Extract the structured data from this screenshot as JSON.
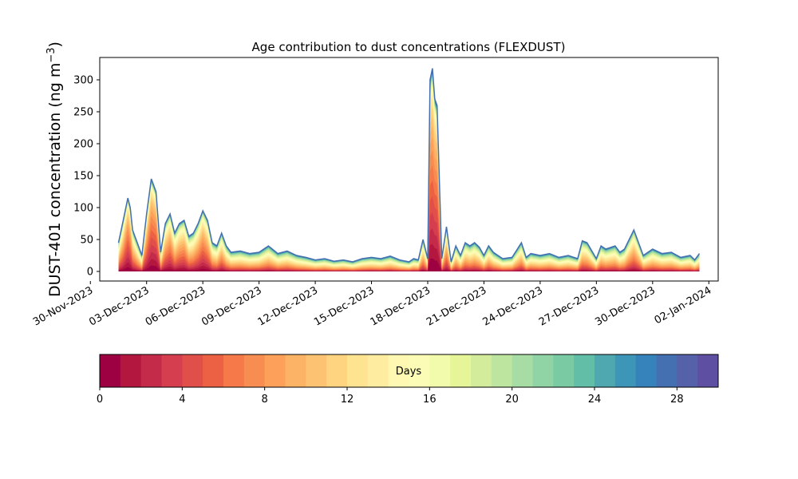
{
  "chart_data": {
    "type": "area",
    "title": "Age contribution to dust concentrations (FLEXDUST)",
    "ylabel_main": "DUST-401 concentration (ng m",
    "ylabel_sup": "−3",
    "ylabel_close": ")",
    "xlabel": "",
    "ylim": [
      -15,
      335
    ],
    "xlim": [
      "2023-11-30T12:00",
      "2024-01-02T12:00"
    ],
    "y_ticks": [
      0,
      50,
      100,
      150,
      200,
      250,
      300
    ],
    "x_ticks": [
      "30-Nov-2023",
      "03-Dec-2023",
      "06-Dec-2023",
      "09-Dec-2023",
      "12-Dec-2023",
      "15-Dec-2023",
      "18-Dec-2023",
      "21-Dec-2023",
      "24-Dec-2023",
      "27-Dec-2023",
      "30-Dec-2023",
      "02-Jan-2024"
    ],
    "x_tick_dates": [
      "2023-11-30",
      "2023-12-03",
      "2023-12-06",
      "2023-12-09",
      "2023-12-12",
      "2023-12-15",
      "2023-12-18",
      "2023-12-21",
      "2023-12-24",
      "2023-12-27",
      "2023-12-30",
      "2024-01-02"
    ],
    "total_series": {
      "x": [
        "2023-12-01T12:00",
        "2023-12-01T18:00",
        "2023-12-02T00:00",
        "2023-12-02T03:00",
        "2023-12-02T06:00",
        "2023-12-02T12:00",
        "2023-12-02T18:00",
        "2023-12-03T00:00",
        "2023-12-03T06:00",
        "2023-12-03T12:00",
        "2023-12-03T18:00",
        "2023-12-04T00:00",
        "2023-12-04T06:00",
        "2023-12-04T12:00",
        "2023-12-04T18:00",
        "2023-12-05T00:00",
        "2023-12-05T06:00",
        "2023-12-05T12:00",
        "2023-12-05T18:00",
        "2023-12-06T00:00",
        "2023-12-06T06:00",
        "2023-12-06T12:00",
        "2023-12-06T18:00",
        "2023-12-07T00:00",
        "2023-12-07T06:00",
        "2023-12-07T12:00",
        "2023-12-08T00:00",
        "2023-12-08T12:00",
        "2023-12-09T00:00",
        "2023-12-09T12:00",
        "2023-12-10T00:00",
        "2023-12-10T12:00",
        "2023-12-11T00:00",
        "2023-12-11T12:00",
        "2023-12-12T00:00",
        "2023-12-12T12:00",
        "2023-12-13T00:00",
        "2023-12-13T12:00",
        "2023-12-14T00:00",
        "2023-12-14T12:00",
        "2023-12-15T00:00",
        "2023-12-15T12:00",
        "2023-12-16T00:00",
        "2023-12-16T12:00",
        "2023-12-17T00:00",
        "2023-12-17T06:00",
        "2023-12-17T12:00",
        "2023-12-17T18:00",
        "2023-12-18T00:00",
        "2023-12-18T03:00",
        "2023-12-18T06:00",
        "2023-12-18T09:00",
        "2023-12-18T12:00",
        "2023-12-18T18:00",
        "2023-12-19T00:00",
        "2023-12-19T06:00",
        "2023-12-19T12:00",
        "2023-12-19T18:00",
        "2023-12-20T00:00",
        "2023-12-20T06:00",
        "2023-12-20T12:00",
        "2023-12-20T18:00",
        "2023-12-21T00:00",
        "2023-12-21T06:00",
        "2023-12-21T12:00",
        "2023-12-22T00:00",
        "2023-12-22T12:00",
        "2023-12-23T00:00",
        "2023-12-23T06:00",
        "2023-12-23T12:00",
        "2023-12-24T00:00",
        "2023-12-24T12:00",
        "2023-12-25T00:00",
        "2023-12-25T12:00",
        "2023-12-26T00:00",
        "2023-12-26T06:00",
        "2023-12-26T12:00",
        "2023-12-27T00:00",
        "2023-12-27T06:00",
        "2023-12-27T12:00",
        "2023-12-28T00:00",
        "2023-12-28T06:00",
        "2023-12-28T12:00",
        "2023-12-29T00:00",
        "2023-12-29T12:00",
        "2023-12-30T00:00",
        "2023-12-30T12:00",
        "2023-12-31T00:00",
        "2023-12-31T12:00",
        "2024-01-01T00:00",
        "2024-01-01T06:00",
        "2024-01-01T12:00"
      ],
      "y": [
        45,
        80,
        115,
        100,
        65,
        45,
        25,
        90,
        145,
        125,
        30,
        75,
        90,
        60,
        75,
        80,
        55,
        60,
        75,
        95,
        80,
        45,
        40,
        60,
        40,
        30,
        32,
        28,
        30,
        40,
        28,
        32,
        25,
        22,
        18,
        20,
        16,
        18,
        15,
        20,
        22,
        20,
        24,
        18,
        15,
        20,
        18,
        50,
        20,
        300,
        318,
        270,
        260,
        20,
        70,
        15,
        40,
        25,
        45,
        40,
        45,
        38,
        25,
        40,
        30,
        20,
        22,
        45,
        22,
        28,
        25,
        28,
        22,
        25,
        20,
        48,
        45,
        20,
        40,
        35,
        40,
        30,
        35,
        65,
        25,
        35,
        28,
        30,
        22,
        25,
        18,
        28
      ]
    },
    "colorbar": {
      "label": "Days",
      "min": 0,
      "max": 30,
      "ticks": [
        0,
        4,
        8,
        12,
        16,
        20,
        24,
        28
      ],
      "colormap": "Spectral",
      "colors": [
        "#9e0142",
        "#b3173f",
        "#c42b4a",
        "#d53e4f",
        "#e14f4a",
        "#ec6143",
        "#f67a49",
        "#f88d52",
        "#fca05a",
        "#fdb365",
        "#fdc373",
        "#fed481",
        "#fee391",
        "#feeda1",
        "#fff8b3",
        "#fbfdb6",
        "#f2faac",
        "#e6f598",
        "#d2ec9c",
        "#bee5a0",
        "#a7dca4",
        "#90d3a4",
        "#7acba4",
        "#62bea7",
        "#4fa8af",
        "#3d95b8",
        "#3682ba",
        "#4470b1",
        "#5562a9",
        "#5e4fa2"
      ]
    }
  }
}
